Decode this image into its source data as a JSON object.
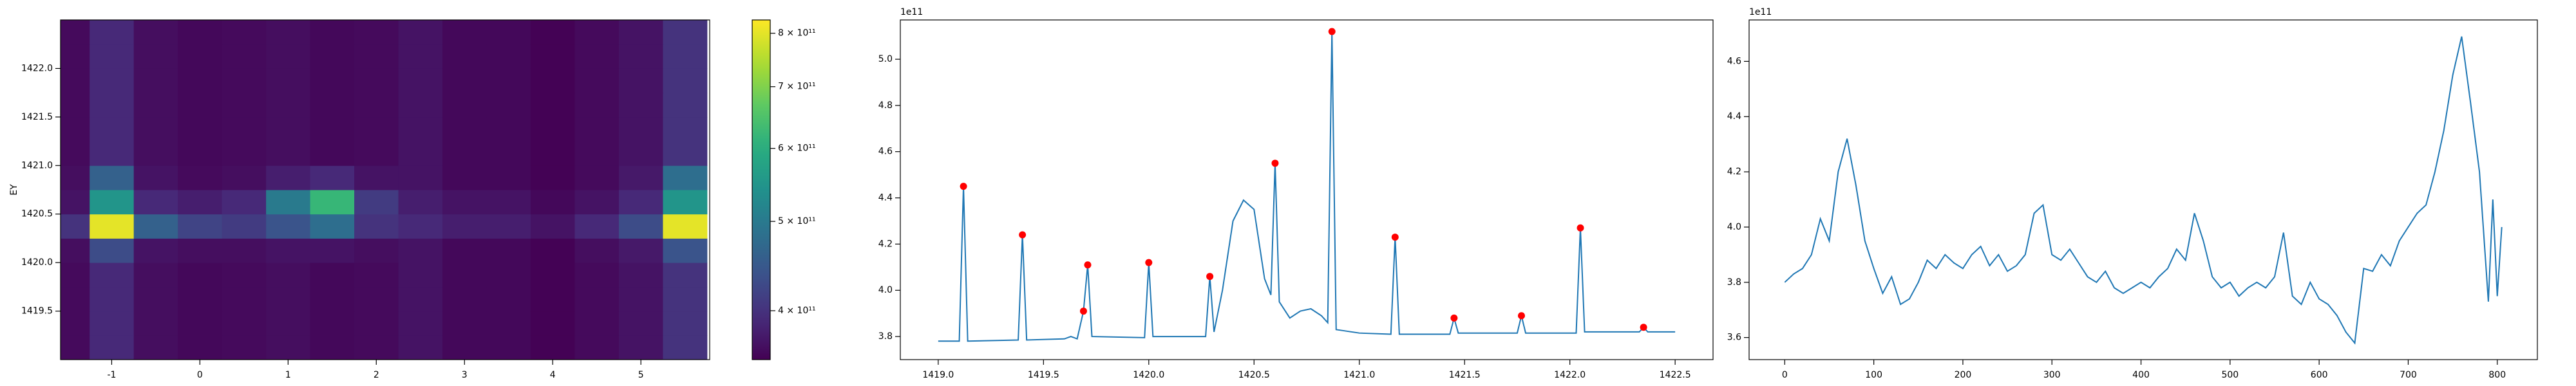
{
  "chart_data": [
    {
      "type": "heatmap",
      "ylabel": "EY",
      "x": [
        -1.5,
        -1,
        -0.5,
        0,
        0.5,
        1,
        1.5,
        2,
        2.5,
        3,
        3.5,
        4,
        4.5,
        5,
        5.5
      ],
      "y": [
        1419.125,
        1419.375,
        1419.625,
        1419.875,
        1420.125,
        1420.375,
        1420.625,
        1420.875,
        1421.125,
        1421.375,
        1421.625,
        1421.875,
        1422.125,
        1422.375
      ],
      "z": [
        [
          362000000000.0,
          390000000000.0,
          365000000000.0,
          360000000000.0,
          362000000000.0,
          365000000000.0,
          360000000000.0,
          362000000000.0,
          370000000000.0,
          360000000000.0,
          360000000000.0,
          355000000000.0,
          362000000000.0,
          370000000000.0,
          400000000000.0
        ],
        [
          362000000000.0,
          390000000000.0,
          365000000000.0,
          360000000000.0,
          362000000000.0,
          365000000000.0,
          360000000000.0,
          362000000000.0,
          370000000000.0,
          360000000000.0,
          360000000000.0,
          355000000000.0,
          362000000000.0,
          370000000000.0,
          400000000000.0
        ],
        [
          362000000000.0,
          390000000000.0,
          365000000000.0,
          360000000000.0,
          362000000000.0,
          365000000000.0,
          360000000000.0,
          362000000000.0,
          370000000000.0,
          360000000000.0,
          360000000000.0,
          355000000000.0,
          362000000000.0,
          370000000000.0,
          400000000000.0
        ],
        [
          362000000000.0,
          390000000000.0,
          365000000000.0,
          360000000000.0,
          362000000000.0,
          365000000000.0,
          360000000000.0,
          362000000000.0,
          370000000000.0,
          360000000000.0,
          360000000000.0,
          355000000000.0,
          362000000000.0,
          370000000000.0,
          400000000000.0
        ],
        [
          365000000000.0,
          430000000000.0,
          370000000000.0,
          365000000000.0,
          365000000000.0,
          370000000000.0,
          370000000000.0,
          365000000000.0,
          370000000000.0,
          360000000000.0,
          360000000000.0,
          355000000000.0,
          365000000000.0,
          375000000000.0,
          440000000000.0
        ],
        [
          400000000000.0,
          800000000000.0,
          460000000000.0,
          420000000000.0,
          410000000000.0,
          440000000000.0,
          480000000000.0,
          400000000000.0,
          390000000000.0,
          380000000000.0,
          380000000000.0,
          370000000000.0,
          390000000000.0,
          430000000000.0,
          800000000000.0
        ],
        [
          370000000000.0,
          550000000000.0,
          390000000000.0,
          380000000000.0,
          390000000000.0,
          500000000000.0,
          620000000000.0,
          410000000000.0,
          380000000000.0,
          370000000000.0,
          370000000000.0,
          360000000000.0,
          370000000000.0,
          390000000000.0,
          550000000000.0
        ],
        [
          365000000000.0,
          460000000000.0,
          370000000000.0,
          362000000000.0,
          365000000000.0,
          380000000000.0,
          390000000000.0,
          370000000000.0,
          370000000000.0,
          360000000000.0,
          360000000000.0,
          355000000000.0,
          362000000000.0,
          375000000000.0,
          480000000000.0
        ],
        [
          362000000000.0,
          390000000000.0,
          365000000000.0,
          360000000000.0,
          362000000000.0,
          365000000000.0,
          360000000000.0,
          362000000000.0,
          370000000000.0,
          360000000000.0,
          360000000000.0,
          355000000000.0,
          362000000000.0,
          370000000000.0,
          400000000000.0
        ],
        [
          362000000000.0,
          390000000000.0,
          365000000000.0,
          360000000000.0,
          362000000000.0,
          365000000000.0,
          360000000000.0,
          362000000000.0,
          370000000000.0,
          360000000000.0,
          360000000000.0,
          355000000000.0,
          362000000000.0,
          370000000000.0,
          400000000000.0
        ],
        [
          362000000000.0,
          390000000000.0,
          365000000000.0,
          360000000000.0,
          362000000000.0,
          365000000000.0,
          360000000000.0,
          362000000000.0,
          370000000000.0,
          360000000000.0,
          360000000000.0,
          355000000000.0,
          362000000000.0,
          370000000000.0,
          400000000000.0
        ],
        [
          362000000000.0,
          390000000000.0,
          365000000000.0,
          360000000000.0,
          362000000000.0,
          365000000000.0,
          360000000000.0,
          362000000000.0,
          370000000000.0,
          360000000000.0,
          360000000000.0,
          355000000000.0,
          362000000000.0,
          370000000000.0,
          400000000000.0
        ],
        [
          362000000000.0,
          390000000000.0,
          365000000000.0,
          360000000000.0,
          362000000000.0,
          365000000000.0,
          360000000000.0,
          362000000000.0,
          370000000000.0,
          360000000000.0,
          360000000000.0,
          355000000000.0,
          362000000000.0,
          370000000000.0,
          400000000000.0
        ],
        [
          362000000000.0,
          390000000000.0,
          365000000000.0,
          360000000000.0,
          362000000000.0,
          365000000000.0,
          360000000000.0,
          362000000000.0,
          370000000000.0,
          360000000000.0,
          360000000000.0,
          355000000000.0,
          362000000000.0,
          370000000000.0,
          400000000000.0
        ]
      ],
      "xlim": [
        -1.58,
        5.78
      ],
      "ylim": [
        1419.0,
        1422.5
      ],
      "xticks": [
        -1,
        0,
        1,
        2,
        3,
        4,
        5
      ],
      "yticks": [
        1419.5,
        {
          "value": 1420,
          "label": "1420.0"
        },
        1420.5,
        {
          "value": 1421,
          "label": "1421.0"
        },
        1421.5,
        {
          "value": 1422,
          "label": "1422.0"
        }
      ],
      "colormap": "viridis",
      "color_scale": "log",
      "clim": [
        354000000000.0,
        827000000000.0
      ],
      "cticks": [
        {
          "value": 400000000000.0,
          "label": "4 × 10¹¹"
        },
        {
          "value": 500000000000.0,
          "label": "5 × 10¹¹"
        },
        {
          "value": 600000000000.0,
          "label": "6 × 10¹¹"
        },
        {
          "value": 700000000000.0,
          "label": "7 × 10¹¹"
        },
        {
          "value": 800000000000.0,
          "label": "8 × 10¹¹"
        }
      ]
    },
    {
      "type": "line",
      "offset_text": "1e11",
      "color": "#1f77b4",
      "x": [
        1419.0,
        1419.1,
        1419.12,
        1419.14,
        1419.38,
        1419.4,
        1419.42,
        1419.6,
        1419.63,
        1419.66,
        1419.69,
        1419.71,
        1419.73,
        1419.98,
        1420.0,
        1420.02,
        1420.27,
        1420.29,
        1420.31,
        1420.35,
        1420.4,
        1420.45,
        1420.5,
        1420.55,
        1420.58,
        1420.6,
        1420.62,
        1420.67,
        1420.72,
        1420.77,
        1420.82,
        1420.85,
        1420.87,
        1420.89,
        1421.0,
        1421.15,
        1421.17,
        1421.19,
        1421.43,
        1421.45,
        1421.47,
        1421.75,
        1421.77,
        1421.79,
        1422.03,
        1422.05,
        1422.07,
        1422.33,
        1422.35,
        1422.37,
        1422.5
      ],
      "values": [
        3.78,
        3.78,
        4.45,
        3.78,
        3.785,
        4.24,
        3.785,
        3.79,
        3.8,
        3.79,
        3.91,
        4.11,
        3.8,
        3.795,
        4.12,
        3.8,
        3.8,
        4.06,
        3.82,
        4.0,
        4.3,
        4.39,
        4.35,
        4.05,
        3.98,
        4.55,
        3.95,
        3.88,
        3.91,
        3.92,
        3.89,
        3.86,
        5.12,
        3.83,
        3.815,
        3.81,
        4.23,
        3.81,
        3.81,
        3.88,
        3.815,
        3.815,
        3.89,
        3.815,
        3.815,
        4.27,
        3.82,
        3.82,
        3.84,
        3.82,
        3.82
      ],
      "peaks": {
        "color": "#ff0000",
        "x": [
          1419.12,
          1419.4,
          1419.69,
          1419.71,
          1420.0,
          1420.29,
          1420.6,
          1420.87,
          1421.17,
          1421.45,
          1421.77,
          1422.05,
          1422.35
        ],
        "values": [
          4.45,
          4.24,
          3.91,
          4.11,
          4.12,
          4.06,
          4.55,
          5.12,
          4.23,
          3.88,
          3.89,
          4.27,
          3.84
        ]
      },
      "xlim": [
        1418.82,
        1422.68
      ],
      "ylim": [
        3.7,
        5.17
      ],
      "xticks": [
        {
          "value": 1419,
          "label": "1419.0"
        },
        1419.5,
        {
          "value": 1420,
          "label": "1420.0"
        },
        1420.5,
        {
          "value": 1421,
          "label": "1421.0"
        },
        1421.5,
        {
          "value": 1422,
          "label": "1422.0"
        },
        1422.5
      ],
      "yticks": [
        3.8,
        {
          "value": 4,
          "label": "4.0"
        },
        4.2,
        4.4,
        4.6,
        4.8,
        {
          "value": 5,
          "label": "5.0"
        }
      ]
    },
    {
      "type": "line",
      "offset_text": "1e11",
      "color": "#1f77b4",
      "x": [
        0,
        10,
        20,
        30,
        40,
        50,
        60,
        70,
        80,
        90,
        100,
        110,
        120,
        130,
        140,
        150,
        160,
        170,
        180,
        190,
        200,
        210,
        220,
        230,
        240,
        250,
        260,
        270,
        280,
        290,
        300,
        310,
        320,
        330,
        340,
        350,
        360,
        370,
        380,
        390,
        400,
        410,
        420,
        430,
        440,
        450,
        460,
        470,
        480,
        490,
        500,
        510,
        520,
        530,
        540,
        550,
        560,
        570,
        580,
        590,
        600,
        610,
        620,
        630,
        640,
        650,
        660,
        670,
        680,
        690,
        700,
        710,
        720,
        730,
        740,
        750,
        760,
        770,
        780,
        790,
        795,
        800,
        805
      ],
      "values": [
        3.8,
        3.83,
        3.85,
        3.9,
        4.03,
        3.95,
        4.2,
        4.32,
        4.15,
        3.95,
        3.85,
        3.76,
        3.82,
        3.72,
        3.74,
        3.8,
        3.88,
        3.85,
        3.9,
        3.87,
        3.85,
        3.9,
        3.93,
        3.86,
        3.9,
        3.84,
        3.86,
        3.9,
        4.05,
        4.08,
        3.9,
        3.88,
        3.92,
        3.87,
        3.82,
        3.8,
        3.84,
        3.78,
        3.76,
        3.78,
        3.8,
        3.78,
        3.82,
        3.85,
        3.92,
        3.88,
        4.05,
        3.95,
        3.82,
        3.78,
        3.8,
        3.75,
        3.78,
        3.8,
        3.78,
        3.82,
        3.98,
        3.75,
        3.72,
        3.8,
        3.74,
        3.72,
        3.68,
        3.62,
        3.58,
        3.85,
        3.84,
        3.9,
        3.86,
        3.95,
        4.0,
        4.05,
        4.08,
        4.2,
        4.35,
        4.55,
        4.69,
        4.45,
        4.2,
        3.73,
        4.1,
        3.75,
        4.0
      ],
      "xlim": [
        -40,
        845
      ],
      "ylim": [
        3.52,
        4.75
      ],
      "xticks": [
        0,
        100,
        200,
        300,
        400,
        500,
        600,
        700,
        800
      ],
      "yticks": [
        3.6,
        3.8,
        {
          "value": 4,
          "label": "4.0"
        },
        4.2,
        4.4,
        4.6
      ]
    }
  ]
}
